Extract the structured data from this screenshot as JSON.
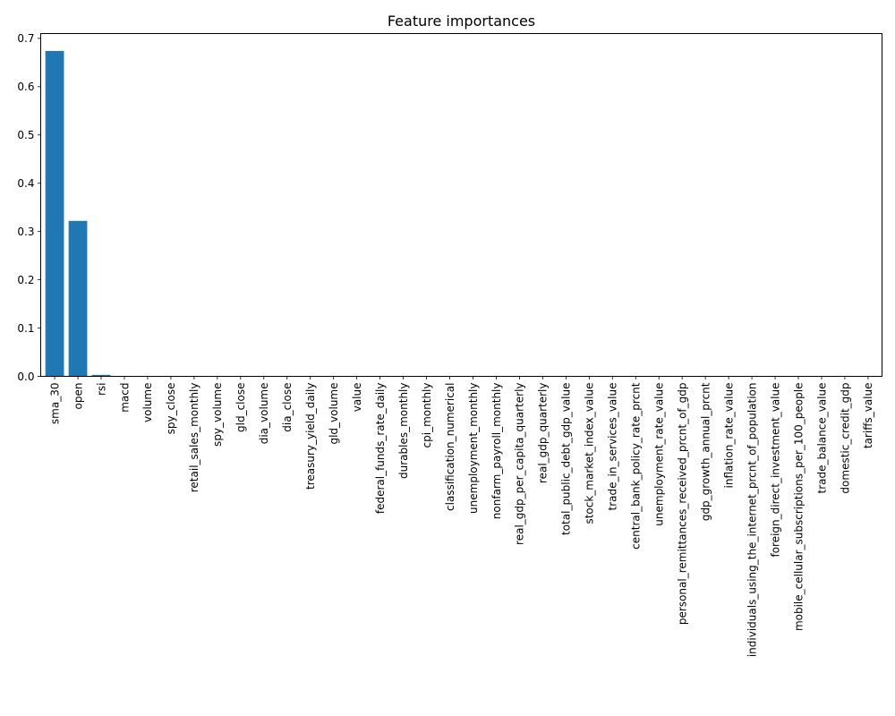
{
  "chart_data": {
    "type": "bar",
    "title": "Feature importances",
    "xlabel": "",
    "ylabel": "",
    "ylim": [
      0,
      0.71
    ],
    "yticks": [
      0.0,
      0.1,
      0.2,
      0.3,
      0.4,
      0.5,
      0.6,
      0.7
    ],
    "ytick_labels": [
      "0.0",
      "0.1",
      "0.2",
      "0.3",
      "0.4",
      "0.5",
      "0.6",
      "0.7"
    ],
    "grid": false,
    "bar_color": "#1f77b4",
    "categories": [
      "sma_30",
      "open",
      "rsi",
      "macd",
      "volume",
      "spy_close",
      "retail_sales_monthly",
      "spy_volume",
      "gld_close",
      "dia_volume",
      "dia_close",
      "treasury_yield_daily",
      "gld_volume",
      "value",
      "federal_funds_rate_daily",
      "durables_monthly",
      "cpi_monthly",
      "classification_numerical",
      "unemployment_monthly",
      "nonfarm_payroll_monthly",
      "real_gdp_per_capita_quarterly",
      "real_gdp_quarterly",
      "total_public_debt_gdp_value",
      "stock_market_index_value",
      "trade_in_services_value",
      "central_bank_policy_rate_prcnt",
      "unemployment_rate_value",
      "personal_remittances_received_prcnt_of_gdp",
      "gdp_growth_annual_prcnt",
      "inflation_rate_value",
      "individuals_using_the_internet_prcnt_of_population",
      "foreign_direct_investment_value",
      "mobile_cellular_subscriptions_per_100_people",
      "trade_balance_value",
      "domestic_credit_gdp",
      "tariffs_value"
    ],
    "values": [
      0.674,
      0.322,
      0.003,
      0.0005,
      0.0003,
      0.0002,
      0.0001,
      0.0001,
      0.0001,
      0.0001,
      0.0001,
      0.0001,
      0.0001,
      0,
      0,
      0,
      0,
      0,
      0,
      0,
      0,
      0,
      0,
      0,
      0,
      0,
      0,
      0,
      0,
      0,
      0,
      0,
      0,
      0,
      0,
      0
    ]
  }
}
